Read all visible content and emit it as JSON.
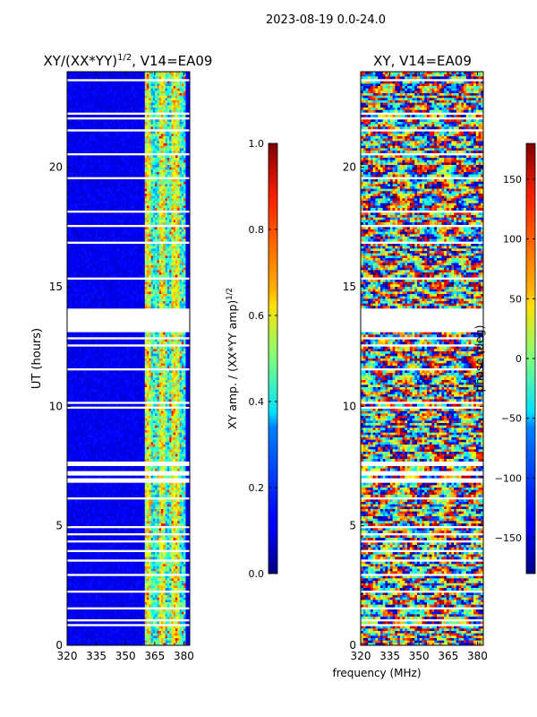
{
  "figure": {
    "suptitle": "2023-08-19 0.0-24.0"
  },
  "chart_data": [
    {
      "id": "ratio",
      "type": "heatmap",
      "title_main": "XY/(XX*YY)",
      "title_exp": "1/2",
      "title_suffix": ", V14=EA09",
      "xlabel": "",
      "ylabel": "UT (hours)",
      "xlim": [
        320,
        383
      ],
      "ylim": [
        0,
        24
      ],
      "xticks": [
        320,
        335,
        350,
        365,
        380
      ],
      "yticks": [
        0,
        5,
        10,
        15,
        20
      ],
      "colorbar": {
        "label_main": "XY amp. / (XX*YY amp)",
        "label_exp": "1/2",
        "range": [
          0.0,
          1.0
        ],
        "ticks": [
          "0.0",
          "0.2",
          "0.4",
          "0.6",
          "0.8",
          "1.0"
        ]
      },
      "blank_ut_bands": [
        [
          13.1,
          14.1
        ]
      ],
      "active_freq_band_mhz": [
        360,
        381
      ]
    },
    {
      "id": "phase",
      "type": "heatmap",
      "title": "XY, V14=EA09",
      "xlabel": "frequency (MHz)",
      "xlim": [
        320,
        383
      ],
      "ylim": [
        0,
        24
      ],
      "xticks": [
        320,
        335,
        350,
        365,
        380
      ],
      "yticks": [
        0,
        5,
        10,
        15,
        20
      ],
      "colorbar": {
        "label": "phase (deg)",
        "range": [
          -180,
          180
        ],
        "ticks": [
          "150",
          "100",
          "50",
          "0",
          "−50",
          "−100",
          "−150"
        ],
        "tick_values": [
          150,
          100,
          50,
          0,
          -50,
          -100,
          -150
        ]
      },
      "blank_ut_bands": [
        [
          13.1,
          14.1
        ]
      ]
    }
  ]
}
